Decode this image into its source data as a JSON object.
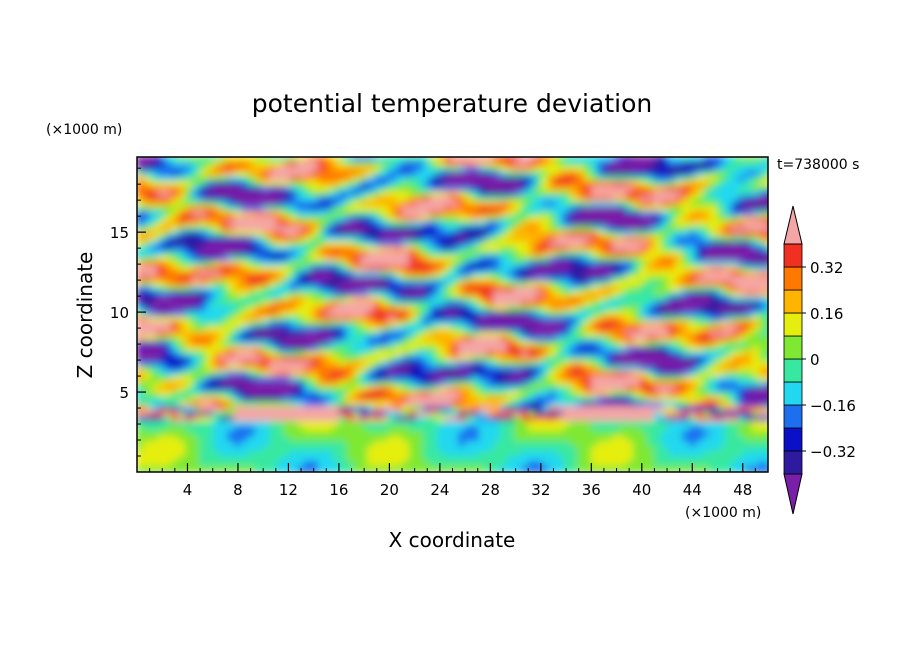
{
  "chart_data": {
    "type": "heatmap",
    "title": "potential temperature deviation",
    "xlabel": "X coordinate",
    "ylabel": "Z coordinate",
    "x_unit": "(×1000 m)",
    "y_unit": "(×1000 m)",
    "time_label": "t=738000 s",
    "xlim": [
      0,
      50
    ],
    "ylim": [
      0,
      19.7
    ],
    "xticks": [
      4,
      8,
      12,
      16,
      20,
      24,
      28,
      32,
      36,
      40,
      44,
      48
    ],
    "yticks": [
      5,
      10,
      15
    ],
    "colorbar": {
      "levels": [
        -0.4,
        -0.32,
        -0.24,
        -0.16,
        -0.08,
        0,
        0.08,
        0.16,
        0.24,
        0.32,
        0.4
      ],
      "labels": [
        "0.32",
        "0.16",
        "0",
        "−0.16",
        "−0.32"
      ],
      "label_values": [
        0.32,
        0.16,
        0,
        -0.16,
        -0.32
      ],
      "colors": [
        "#7a1fa8",
        "#2e1a9e",
        "#0a10c8",
        "#1e6ef0",
        "#22d8f0",
        "#38e8a0",
        "#7ee832",
        "#e6ee10",
        "#ffb400",
        "#ff7800",
        "#f03020",
        "#f4a6a6"
      ]
    }
  }
}
